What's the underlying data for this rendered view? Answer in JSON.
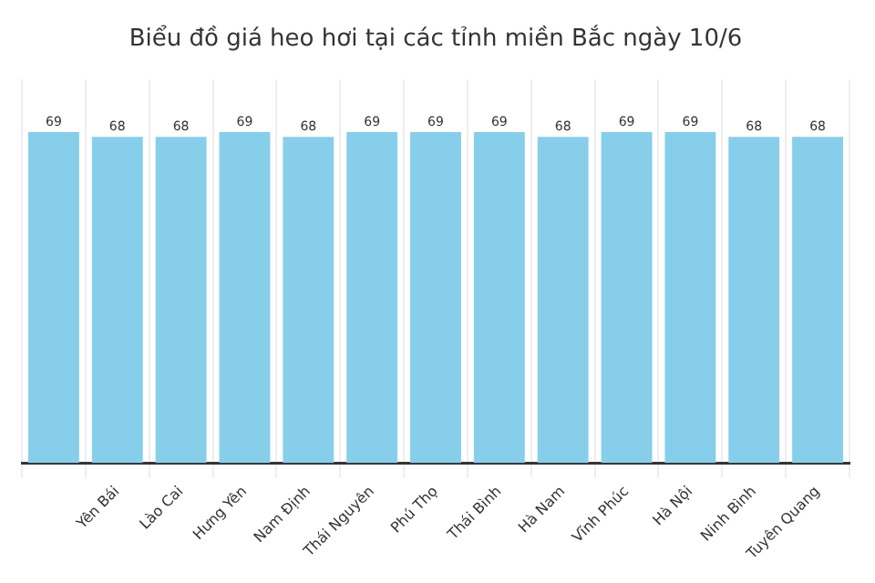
{
  "chart_data": {
    "type": "bar",
    "title": "Biểu đồ giá heo hơi tại các tỉnh miền Bắc ngày 10/6",
    "categories": [
      null,
      "Yên Bái",
      "Lào Cai",
      "Hưng Yên",
      "Nam Định",
      "Thái Nguyên",
      "Phú Thọ",
      "Thái Bình",
      "Hà Nam",
      "Vĩnh Phúc",
      "Hà Nội",
      "Ninh Bình",
      "Tuyên Quang"
    ],
    "values": [
      69,
      68,
      68,
      69,
      68,
      69,
      69,
      69,
      68,
      69,
      69,
      68,
      68
    ],
    "color": "#87ceeb",
    "data_labels": true,
    "grid": "x",
    "tick_labels": "x"
  }
}
